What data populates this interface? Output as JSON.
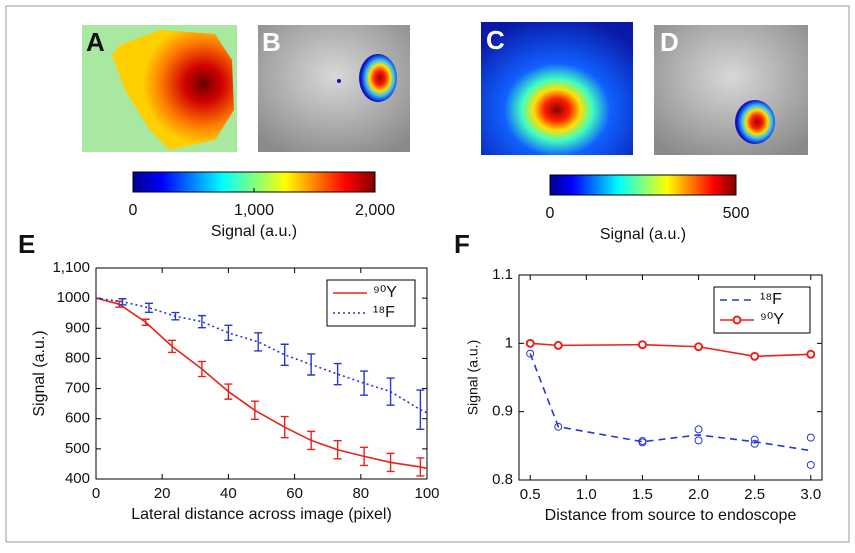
{
  "panels": [
    "A",
    "B",
    "C",
    "D",
    "E",
    "F"
  ],
  "chart_data": [
    {
      "type": "colorbar",
      "xlim": [
        0,
        2000
      ],
      "xticks": [
        0,
        {
          "value": 1000,
          "label": "1,000"
        },
        {
          "value": 2000,
          "label": "2,000"
        }
      ],
      "xlabel": "Signal (a.u.)"
    },
    {
      "type": "colorbar",
      "xlim": [
        0,
        500
      ],
      "xticks": [
        0,
        500
      ],
      "xlabel": "Signal (a.u.)"
    },
    {
      "type": "line",
      "xlabel": "Lateral distance across image (pixel)",
      "ylabel": "Signal (a.u.)",
      "xlim": [
        0,
        100
      ],
      "xticks": [
        0,
        20,
        40,
        60,
        80,
        100
      ],
      "ylim": [
        400,
        1100
      ],
      "yticks": [
        400,
        500,
        600,
        700,
        800,
        900,
        1000,
        {
          "value": 1100,
          "label": "1,100"
        }
      ],
      "legend": "upper right",
      "series": [
        {
          "name": "⁹⁰Y",
          "color": "#e8231c",
          "dash": "solid",
          "x": [
            0,
            7,
            15,
            23,
            32,
            40,
            48,
            57,
            65,
            73,
            81,
            89,
            98,
            100
          ],
          "values": [
            1000,
            980,
            920,
            840,
            765,
            690,
            628,
            572,
            528,
            497,
            475,
            455,
            440,
            435
          ],
          "errors": [
            null,
            10,
            10,
            20,
            25,
            25,
            30,
            35,
            30,
            30,
            30,
            30,
            30,
            null
          ]
        },
        {
          "name": "¹⁸F",
          "color": "#2a35d8",
          "dash": "dotted",
          "x": [
            0,
            8,
            16,
            24,
            32,
            40,
            49,
            57,
            65,
            73,
            81,
            89,
            98,
            100
          ],
          "values": [
            1000,
            988,
            968,
            940,
            922,
            885,
            855,
            812,
            780,
            748,
            718,
            690,
            630,
            620
          ],
          "errors": [
            null,
            10,
            15,
            12,
            20,
            25,
            30,
            35,
            35,
            35,
            40,
            45,
            65,
            null
          ]
        }
      ]
    },
    {
      "type": "line",
      "xlabel": "Distance from source to endoscope",
      "ylabel": "Signal (a.u.)",
      "xlim": [
        0.4,
        3.1
      ],
      "xticks": [
        0.5,
        {
          "value": 1,
          "label": "1.0"
        },
        1.5,
        {
          "value": 2,
          "label": "2.0"
        },
        2.5,
        {
          "value": 3,
          "label": "3.0"
        }
      ],
      "ylim": [
        0.8,
        1.1
      ],
      "yticks": [
        0.8,
        0.9,
        1,
        1.1
      ],
      "legend": "upper right",
      "series": [
        {
          "name": "¹⁸F",
          "color": "#2a35d8",
          "dash": "dashed",
          "x": [
            0.5,
            0.75,
            1.5,
            2.0,
            2.5,
            3.0
          ],
          "values": [
            0.985,
            0.878,
            0.856,
            0.866,
            0.856,
            0.843
          ],
          "points": {
            "x": [
              0.5,
              0.75,
              1.5,
              1.5,
              2.0,
              2.0,
              2.5,
              2.5,
              3.0,
              3.0
            ],
            "values": [
              0.985,
              0.878,
              0.855,
              0.857,
              0.874,
              0.858,
              0.859,
              0.853,
              0.862,
              0.822
            ]
          }
        },
        {
          "name": "⁹⁰Y",
          "color": "#e8231c",
          "dash": "solid",
          "marker": "circle",
          "x": [
            0.5,
            0.75,
            1.5,
            2.0,
            2.5,
            3.0
          ],
          "values": [
            1.0,
            0.997,
            0.998,
            0.995,
            0.981,
            0.984
          ]
        }
      ]
    }
  ]
}
